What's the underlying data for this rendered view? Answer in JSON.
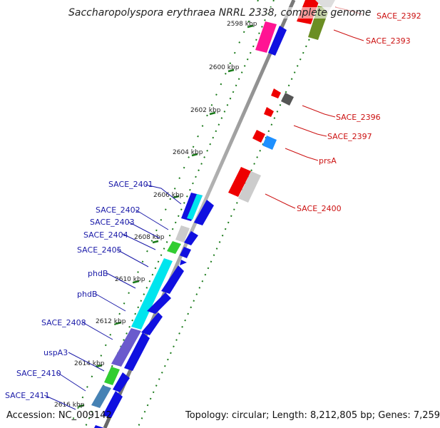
{
  "title": "Saccharopolyspora erythraea NRRL 2338, complete genome",
  "accession": "Accession: NC_009142",
  "topology": "Topology: circular; Length: 8,212,805 bp; Genes: 7,259",
  "ticks": [
    "2598 kbp",
    "2600 kbp",
    "2602 kbp",
    "2604 kbp",
    "2606 kbp",
    "2608 kbp",
    "2610 kbp",
    "2612 kbp",
    "2614 kbp",
    "2616 kbp"
  ],
  "left_labels": [
    "SACE_2401",
    "SACE_2402",
    "SACE_2403",
    "SACE_2404",
    "SACE_2405",
    "phdB",
    "phdB",
    "SACE_2408",
    "uspA3",
    "SACE_2410",
    "SACE_2411"
  ],
  "right_labels": [
    "SACE_2392",
    "SACE_2393",
    "SACE_2396",
    "SACE_2397",
    "prsA",
    "SACE_2400"
  ],
  "colors": {
    "forward": "#1010e0",
    "reverse": "#ee0000",
    "left_label": "#1a1aa8",
    "right_label": "#cc1111",
    "tick": "#1a7a1a",
    "backbone": "#8a8a8a"
  }
}
